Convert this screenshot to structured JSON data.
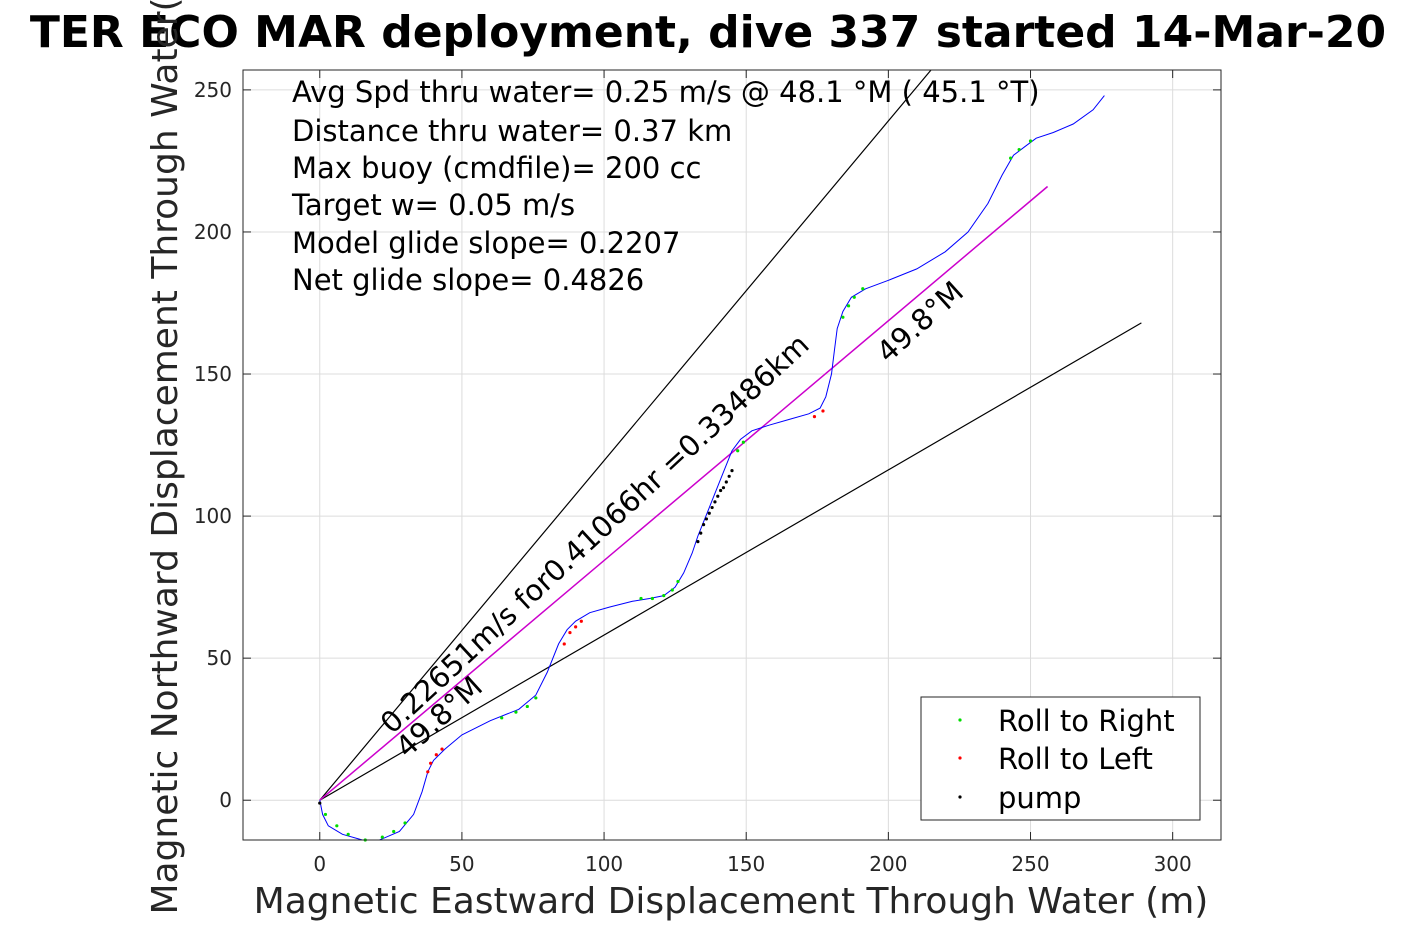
{
  "chart_data": {
    "type": "line",
    "title": "TER ECO MAR deployment, dive 337 started 14-Mar-20",
    "xlabel": "Magnetic Eastward Displacement Through Water (m)",
    "ylabel": "Magnetic Northward Displacement Through Water(",
    "xlim": [
      -27,
      317
    ],
    "ylim": [
      -14,
      257
    ],
    "xticks": [
      0,
      50,
      100,
      150,
      200,
      250,
      300
    ],
    "yticks": [
      0,
      50,
      100,
      150,
      200,
      250
    ],
    "grid": true,
    "legend_position": "bottom-right",
    "info_lines": [
      "Avg Spd thru water=  0.25 m/s @  48.1 °M ( 45.1 °T)",
      "Distance thru water=  0.37 km",
      "Max buoy (cmdfile)= 200 cc",
      "Target w= 0.05 m/s",
      "Model glide slope= 0.2207",
      "Net glide slope= 0.4826"
    ],
    "annotations": {
      "current": "0.22651m/s for0.41066hr =0.33486km",
      "heading_left": "49.8°M",
      "heading_right": "49.8°M"
    },
    "colors": {
      "track": "#0000ff",
      "net": "#cc00cc",
      "roll_right": "#00dd00",
      "roll_left": "#ff0000",
      "pump": "#000000",
      "reference": "#000000",
      "grid": "#dcdcdc"
    },
    "track": {
      "x": [
        0,
        1,
        3,
        8,
        15,
        21,
        28,
        33,
        36,
        38,
        40,
        44,
        50,
        60,
        70,
        76,
        80,
        84,
        87,
        90,
        95,
        102,
        110,
        116,
        121,
        125,
        128,
        131,
        133,
        135,
        137,
        139,
        141,
        143,
        145,
        148,
        152,
        158,
        165,
        172,
        176,
        178,
        180,
        181,
        182,
        184,
        187,
        192,
        200,
        210,
        220,
        228,
        235,
        240,
        244,
        248,
        252,
        258,
        265,
        272,
        276
      ],
      "y": [
        0,
        -5,
        -9,
        -12,
        -14,
        -14,
        -11,
        -5,
        3,
        10,
        14,
        18,
        23,
        28,
        32,
        37,
        45,
        55,
        60,
        63,
        66,
        68,
        70,
        71,
        72,
        75,
        80,
        87,
        93,
        98,
        103,
        108,
        113,
        118,
        123,
        127,
        130,
        132,
        134,
        136,
        138,
        142,
        150,
        158,
        166,
        172,
        177,
        180,
        183,
        187,
        193,
        200,
        210,
        220,
        227,
        230,
        233,
        235,
        238,
        243,
        248
      ]
    },
    "series": [
      {
        "name": "Roll to Right",
        "marker": "dot",
        "x": [
          2,
          6,
          10,
          16,
          22,
          26,
          30,
          64,
          69,
          73,
          76,
          113,
          117,
          121,
          124,
          126,
          147,
          149,
          184,
          186,
          188,
          191,
          243,
          246,
          250
        ],
        "y": [
          -5,
          -9,
          -12,
          -14,
          -13,
          -11,
          -8,
          29,
          31,
          33,
          36,
          71,
          71,
          72,
          74,
          77,
          123,
          126,
          170,
          174,
          177,
          180,
          226,
          229,
          232
        ]
      },
      {
        "name": "Roll to Left",
        "marker": "dot",
        "x": [
          38,
          39,
          41,
          43,
          86,
          88,
          90,
          92,
          174,
          177
        ],
        "y": [
          10,
          13,
          16,
          18,
          55,
          59,
          61,
          63,
          135,
          137
        ]
      },
      {
        "name": "pump",
        "marker": "dot",
        "x": [
          0,
          133,
          134,
          135,
          136,
          137,
          138,
          139,
          140,
          141,
          142,
          143,
          144,
          145
        ],
        "y": [
          -1,
          91,
          94,
          97,
          99,
          101,
          103,
          105,
          107,
          109,
          110,
          112,
          114,
          116
        ]
      }
    ],
    "reference_lines": [
      {
        "x": [
          0,
          215
        ],
        "y": [
          0,
          257
        ]
      },
      {
        "x": [
          0,
          289
        ],
        "y": [
          0,
          168
        ]
      }
    ],
    "net_line": {
      "x": [
        0,
        256
      ],
      "y": [
        0,
        216
      ]
    }
  }
}
